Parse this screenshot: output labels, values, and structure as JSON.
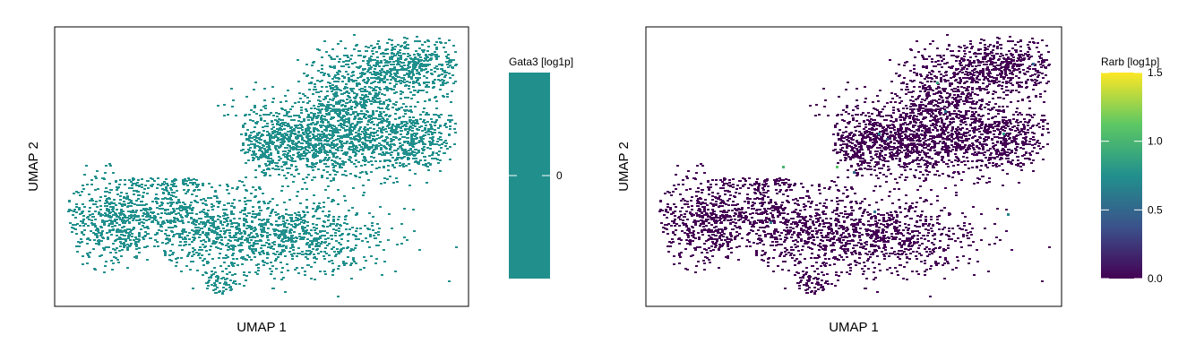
{
  "chart_data": [
    {
      "type": "scatter",
      "xlabel": "UMAP 1",
      "ylabel": "UMAP 2",
      "colorbar": {
        "title": "Gata3 [log1p]",
        "ticks": [
          "0"
        ],
        "colors": [
          "#21908d"
        ]
      },
      "background_value": 0,
      "highlights": [],
      "grid": false,
      "legend": "right"
    },
    {
      "type": "scatter",
      "xlabel": "UMAP 1",
      "ylabel": "UMAP 2",
      "colorbar": {
        "title": "Rarb [log1p]",
        "ticks": [
          "0.0",
          "0.5",
          "1.0",
          "1.5"
        ],
        "range": [
          0,
          1.5
        ],
        "colors": [
          "#440154",
          "#3b528b",
          "#21908d",
          "#5dc863",
          "#fde725"
        ]
      },
      "background_value": 0,
      "highlights": [
        {
          "x": 0.87,
          "y": 0.33,
          "value": 0.7
        },
        {
          "x": 0.7,
          "y": 0.8,
          "value": 0.9
        },
        {
          "x": 0.72,
          "y": 0.7,
          "value": 0.6
        },
        {
          "x": 0.46,
          "y": 0.5,
          "value": 1.1
        },
        {
          "x": 0.55,
          "y": 0.34,
          "value": 0.6
        },
        {
          "x": 0.5,
          "y": 0.48,
          "value": 0.5
        },
        {
          "x": 0.3,
          "y": 0.3,
          "value": 0.6
        },
        {
          "x": 0.86,
          "y": 0.62,
          "value": 0.8
        },
        {
          "x": 0.56,
          "y": 0.62,
          "value": 0.7
        },
        {
          "x": 0.33,
          "y": 0.5,
          "value": 1.0
        },
        {
          "x": 0.93,
          "y": 0.87,
          "value": 0.5
        },
        {
          "x": 0.58,
          "y": 0.6,
          "value": 0.4
        }
      ],
      "grid": false,
      "legend": "right"
    }
  ]
}
